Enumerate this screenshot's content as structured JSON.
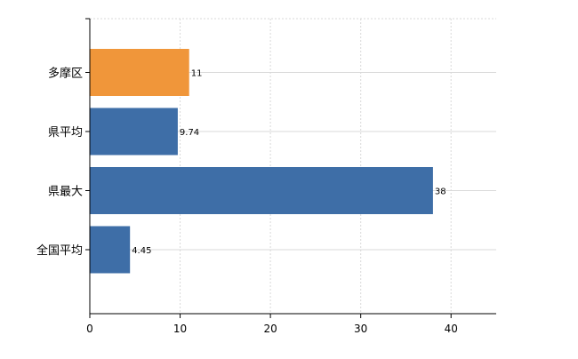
{
  "chart_data": {
    "type": "bar",
    "orientation": "horizontal",
    "categories": [
      "多摩区",
      "県平均",
      "県最大",
      "全国平均"
    ],
    "values": [
      11,
      9.74,
      38,
      4.45
    ],
    "value_labels": [
      "11",
      "9.74",
      "38",
      "4.45"
    ],
    "bar_colors": [
      "#f0963a",
      "#3e6ea7",
      "#3e6ea7",
      "#3e6ea7"
    ],
    "title": "",
    "xlabel": "",
    "ylabel": "",
    "xlim": [
      0,
      45
    ],
    "xticks": [
      0,
      10,
      20,
      30,
      40
    ],
    "grid": true,
    "legend": "none"
  }
}
